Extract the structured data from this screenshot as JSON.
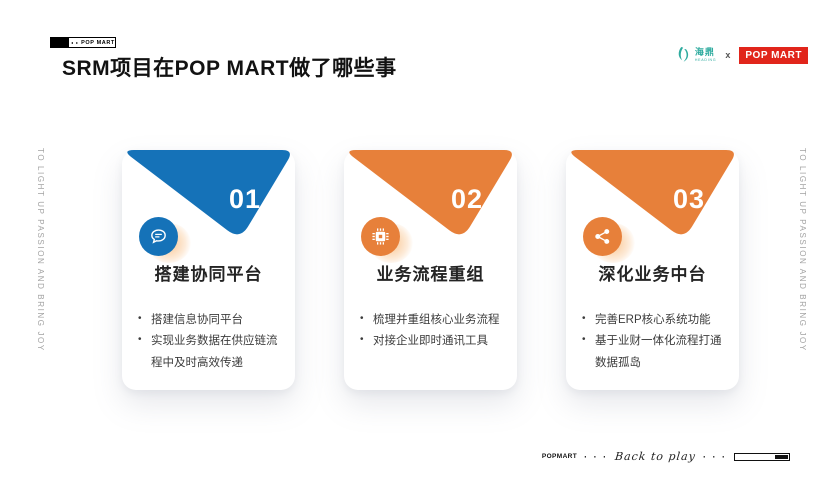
{
  "slide": {
    "corner_badge": {
      "text": "POP MART",
      "marks": "◂ ▸"
    },
    "title": "SRM项目在POP MART做了哪些事",
    "header_right": {
      "partner_cn": "海鼎",
      "partner_en": "HEADING",
      "separator": "x",
      "brand_badge": "POP MART"
    },
    "side_text_left": "TO LIGHT UP PASSION AND BRING JOY",
    "side_text_right": "TO LIGHT UP PASSION AND BRING JOY",
    "colors": {
      "blue": "#1572b8",
      "orange": "#e7803a",
      "badge_red": "#e1251b",
      "partner_teal": "#2fab9f"
    },
    "cards": [
      {
        "number": "01",
        "accent": "blue",
        "icon": "chat-bubble-icon",
        "title": "搭建协同平台",
        "bullets": [
          "搭建信息协同平台",
          "实现业务数据在供应链流程中及时高效传递"
        ]
      },
      {
        "number": "02",
        "accent": "orange",
        "icon": "cpu-chip-icon",
        "title": "业务流程重组",
        "bullets": [
          "梳理并重组核心业务流程",
          "对接企业即时通讯工具"
        ]
      },
      {
        "number": "03",
        "accent": "orange",
        "icon": "share-network-icon",
        "title": "深化业务中台",
        "bullets": [
          "完善ERP核心系统功能",
          "基于业财一体化流程打通数据孤岛"
        ]
      }
    ],
    "footer": {
      "brand": "POPMART",
      "dots_left": "· · ·",
      "script": "Back to play",
      "dots_right": "· · ·"
    }
  }
}
